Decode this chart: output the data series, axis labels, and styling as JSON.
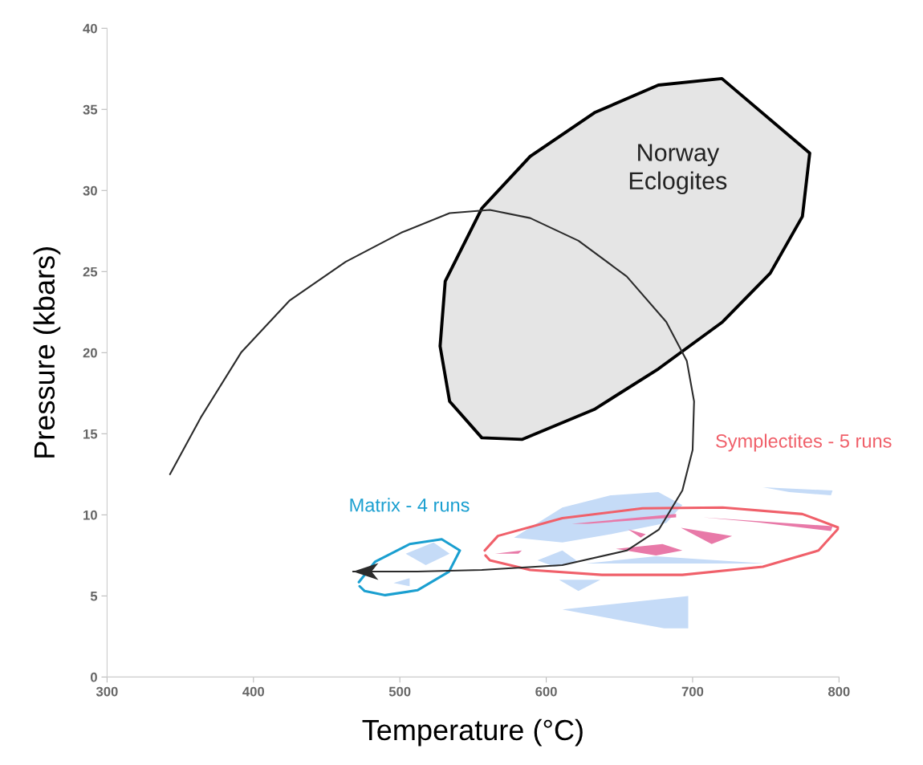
{
  "chart_data": {
    "type": "line",
    "xlabel": "Temperature (°C)",
    "ylabel": "Pressure (kbars)",
    "xlim": [
      300,
      800
    ],
    "ylim": [
      0,
      40
    ],
    "xticks": [
      300,
      400,
      500,
      600,
      700,
      800
    ],
    "yticks": [
      0,
      5,
      10,
      15,
      20,
      25,
      30,
      35,
      40
    ],
    "grid": false,
    "legend": false,
    "marker": "none",
    "line_style": "solid",
    "series": [
      {
        "type": "area",
        "color": "#c5dbf7",
        "x": [
          611,
          697,
          697,
          680.6
        ],
        "values": [
          4.16,
          5.0,
          3.0,
          3.0
        ]
      },
      {
        "type": "area",
        "color": "#c5dbf7",
        "x": [
          608.7,
          637,
          622
        ],
        "values": [
          6.0,
          6.0,
          5.3
        ]
      },
      {
        "type": "area",
        "color": "#c5dbf7",
        "x": [
          748,
          795.6,
          794.5,
          766
        ],
        "values": [
          11.7,
          11.5,
          11.2,
          11.4
        ]
      },
      {
        "type": "area",
        "color": "#c5dbf7",
        "x": [
          578,
          611,
          644,
          676.6,
          693,
          682,
          644,
          611
        ],
        "values": [
          8.6,
          10.45,
          11.2,
          11.4,
          10.6,
          9.5,
          8.8,
          8.3
        ]
      },
      {
        "type": "area",
        "color": "#c5dbf7",
        "x": [
          626.8,
          675,
          750
        ],
        "values": [
          7.0,
          7.45,
          7.0
        ]
      },
      {
        "type": "area",
        "color": "#c5dbf7",
        "x": [
          594,
          611,
          622,
          605.6
        ],
        "values": [
          7.2,
          7.8,
          7.1,
          6.8
        ]
      },
      {
        "type": "area",
        "color": "#c5dbf7",
        "x": [
          504,
          523,
          534,
          517.7
        ],
        "values": [
          7.6,
          8.3,
          7.6,
          6.9
        ]
      },
      {
        "type": "area",
        "color": "#c5dbf7",
        "x": [
          495.7,
          506.7,
          506.7
        ],
        "values": [
          5.8,
          6.1,
          5.6
        ]
      },
      {
        "type": "area",
        "color": "#e879a8",
        "x": [
          707,
          795.6,
          794.5,
          743.5
        ],
        "values": [
          9.85,
          9.3,
          9.0,
          9.55
        ]
      },
      {
        "type": "area",
        "color": "#e879a8",
        "x": [
          692,
          727,
          713
        ],
        "values": [
          9.2,
          8.7,
          8.2
        ]
      },
      {
        "type": "area",
        "color": "#e879a8",
        "x": [
          647.6,
          679.4,
          693,
          675
        ],
        "values": [
          7.9,
          8.2,
          7.8,
          7.5
        ]
      },
      {
        "type": "area",
        "color": "#e879a8",
        "x": [
          656,
          668,
          664.6
        ],
        "values": [
          9.1,
          8.8,
          8.6
        ]
      },
      {
        "type": "area",
        "color": "#e879a8",
        "x": [
          617.4,
          688.7,
          688.7,
          629
        ],
        "values": [
          9.45,
          10.05,
          9.85,
          9.45
        ]
      },
      {
        "type": "area",
        "color": "#e879a8",
        "x": [
          565,
          583.4,
          581
        ],
        "values": [
          7.6,
          7.8,
          7.6
        ]
      },
      {
        "type": "area",
        "name": "Norway Eclogites",
        "color": "#000000",
        "line_style": "solid",
        "x": [
          720,
          780,
          775,
          753,
          720.5,
          676.6,
          632.8,
          583.4,
          556,
          534,
          527.5,
          531,
          556,
          589,
          633,
          676.6,
          720
        ],
        "values": [
          36.9,
          32.3,
          28.4,
          24.9,
          21.9,
          19.0,
          16.5,
          14.65,
          14.75,
          17.0,
          20.4,
          24.4,
          28.9,
          32.1,
          34.8,
          36.5,
          36.9
        ]
      },
      {
        "type": "line",
        "name": "Symplectites - 5 runs",
        "color": "#f0606a",
        "x": [
          558,
          567,
          611,
          665.7,
          720.5,
          775,
          800,
          786,
          748,
          693,
          638,
          589,
          561.5,
          558.5
        ],
        "values": [
          7.8,
          8.7,
          9.8,
          10.4,
          10.45,
          10.05,
          9.2,
          7.8,
          6.8,
          6.3,
          6.3,
          6.6,
          7.2,
          7.5
        ]
      },
      {
        "type": "line",
        "name": "Matrix - 4 runs",
        "color": "#1a9fd0",
        "x": [
          472,
          483,
          506.7,
          528.6,
          541,
          533.6,
          512,
          490,
          476,
          472.5
        ],
        "values": [
          5.85,
          7.1,
          8.2,
          8.5,
          7.8,
          6.5,
          5.35,
          5.05,
          5.3,
          5.6
        ]
      },
      {
        "color": "#2b2b2b",
        "x": [
          343,
          364,
          391.5,
          424.5,
          463,
          501,
          534,
          561.5,
          589,
          622,
          655,
          682,
          696,
          701,
          700,
          693,
          677,
          655,
          611,
          556,
          512,
          468
        ],
        "values": [
          12.5,
          16.0,
          20.0,
          23.2,
          25.6,
          27.4,
          28.6,
          28.8,
          28.3,
          26.9,
          24.7,
          21.9,
          19.5,
          17.0,
          14.0,
          11.5,
          9.1,
          7.8,
          6.9,
          6.6,
          6.5,
          6.5
        ]
      }
    ]
  }
}
